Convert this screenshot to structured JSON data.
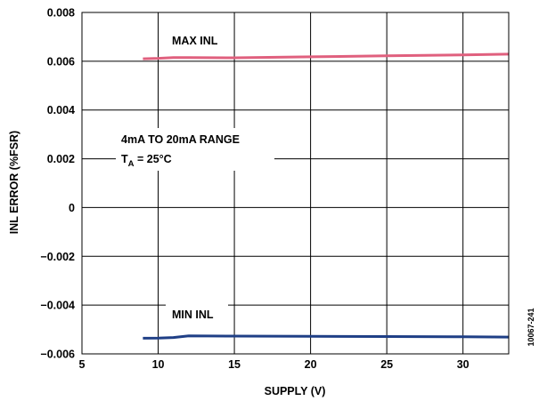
{
  "chart_data": {
    "type": "line",
    "xlabel": "SUPPLY (V)",
    "ylabel": "INL ERROR (%FSR)",
    "xlim": [
      5,
      33
    ],
    "ylim": [
      -0.006,
      0.008
    ],
    "x_ticks": [
      5,
      10,
      15,
      20,
      25,
      30
    ],
    "x_tick_labels": [
      "5",
      "10",
      "15",
      "20",
      "25",
      "30"
    ],
    "y_ticks": [
      -0.006,
      -0.004,
      -0.002,
      0,
      0.002,
      0.004,
      0.006,
      0.008
    ],
    "y_tick_labels": [
      "−0.006",
      "−0.004",
      "−0.002",
      "0",
      "0.002",
      "0.004",
      "0.006",
      "0.008"
    ],
    "grid": true,
    "series": [
      {
        "name": "MAX INL",
        "color": "#e0607e",
        "x": [
          9,
          10,
          11,
          12,
          15,
          20,
          25,
          30,
          33
        ],
        "values": [
          0.0061,
          0.00612,
          0.00615,
          0.00615,
          0.00614,
          0.00618,
          0.00622,
          0.00626,
          0.00629
        ]
      },
      {
        "name": "MIN INL",
        "color": "#1f3f86",
        "x": [
          9,
          10,
          11,
          12,
          15,
          20,
          25,
          30,
          33
        ],
        "values": [
          -0.00536,
          -0.00535,
          -0.00533,
          -0.00526,
          -0.00527,
          -0.00528,
          -0.00529,
          -0.0053,
          -0.00531
        ]
      }
    ],
    "annotations": {
      "range": "4mA TO 20mA RANGE",
      "ta_prefix": "T",
      "ta_subscript": "A",
      "ta_suffix": " = 25°C"
    },
    "figure_id": "10067-241"
  }
}
